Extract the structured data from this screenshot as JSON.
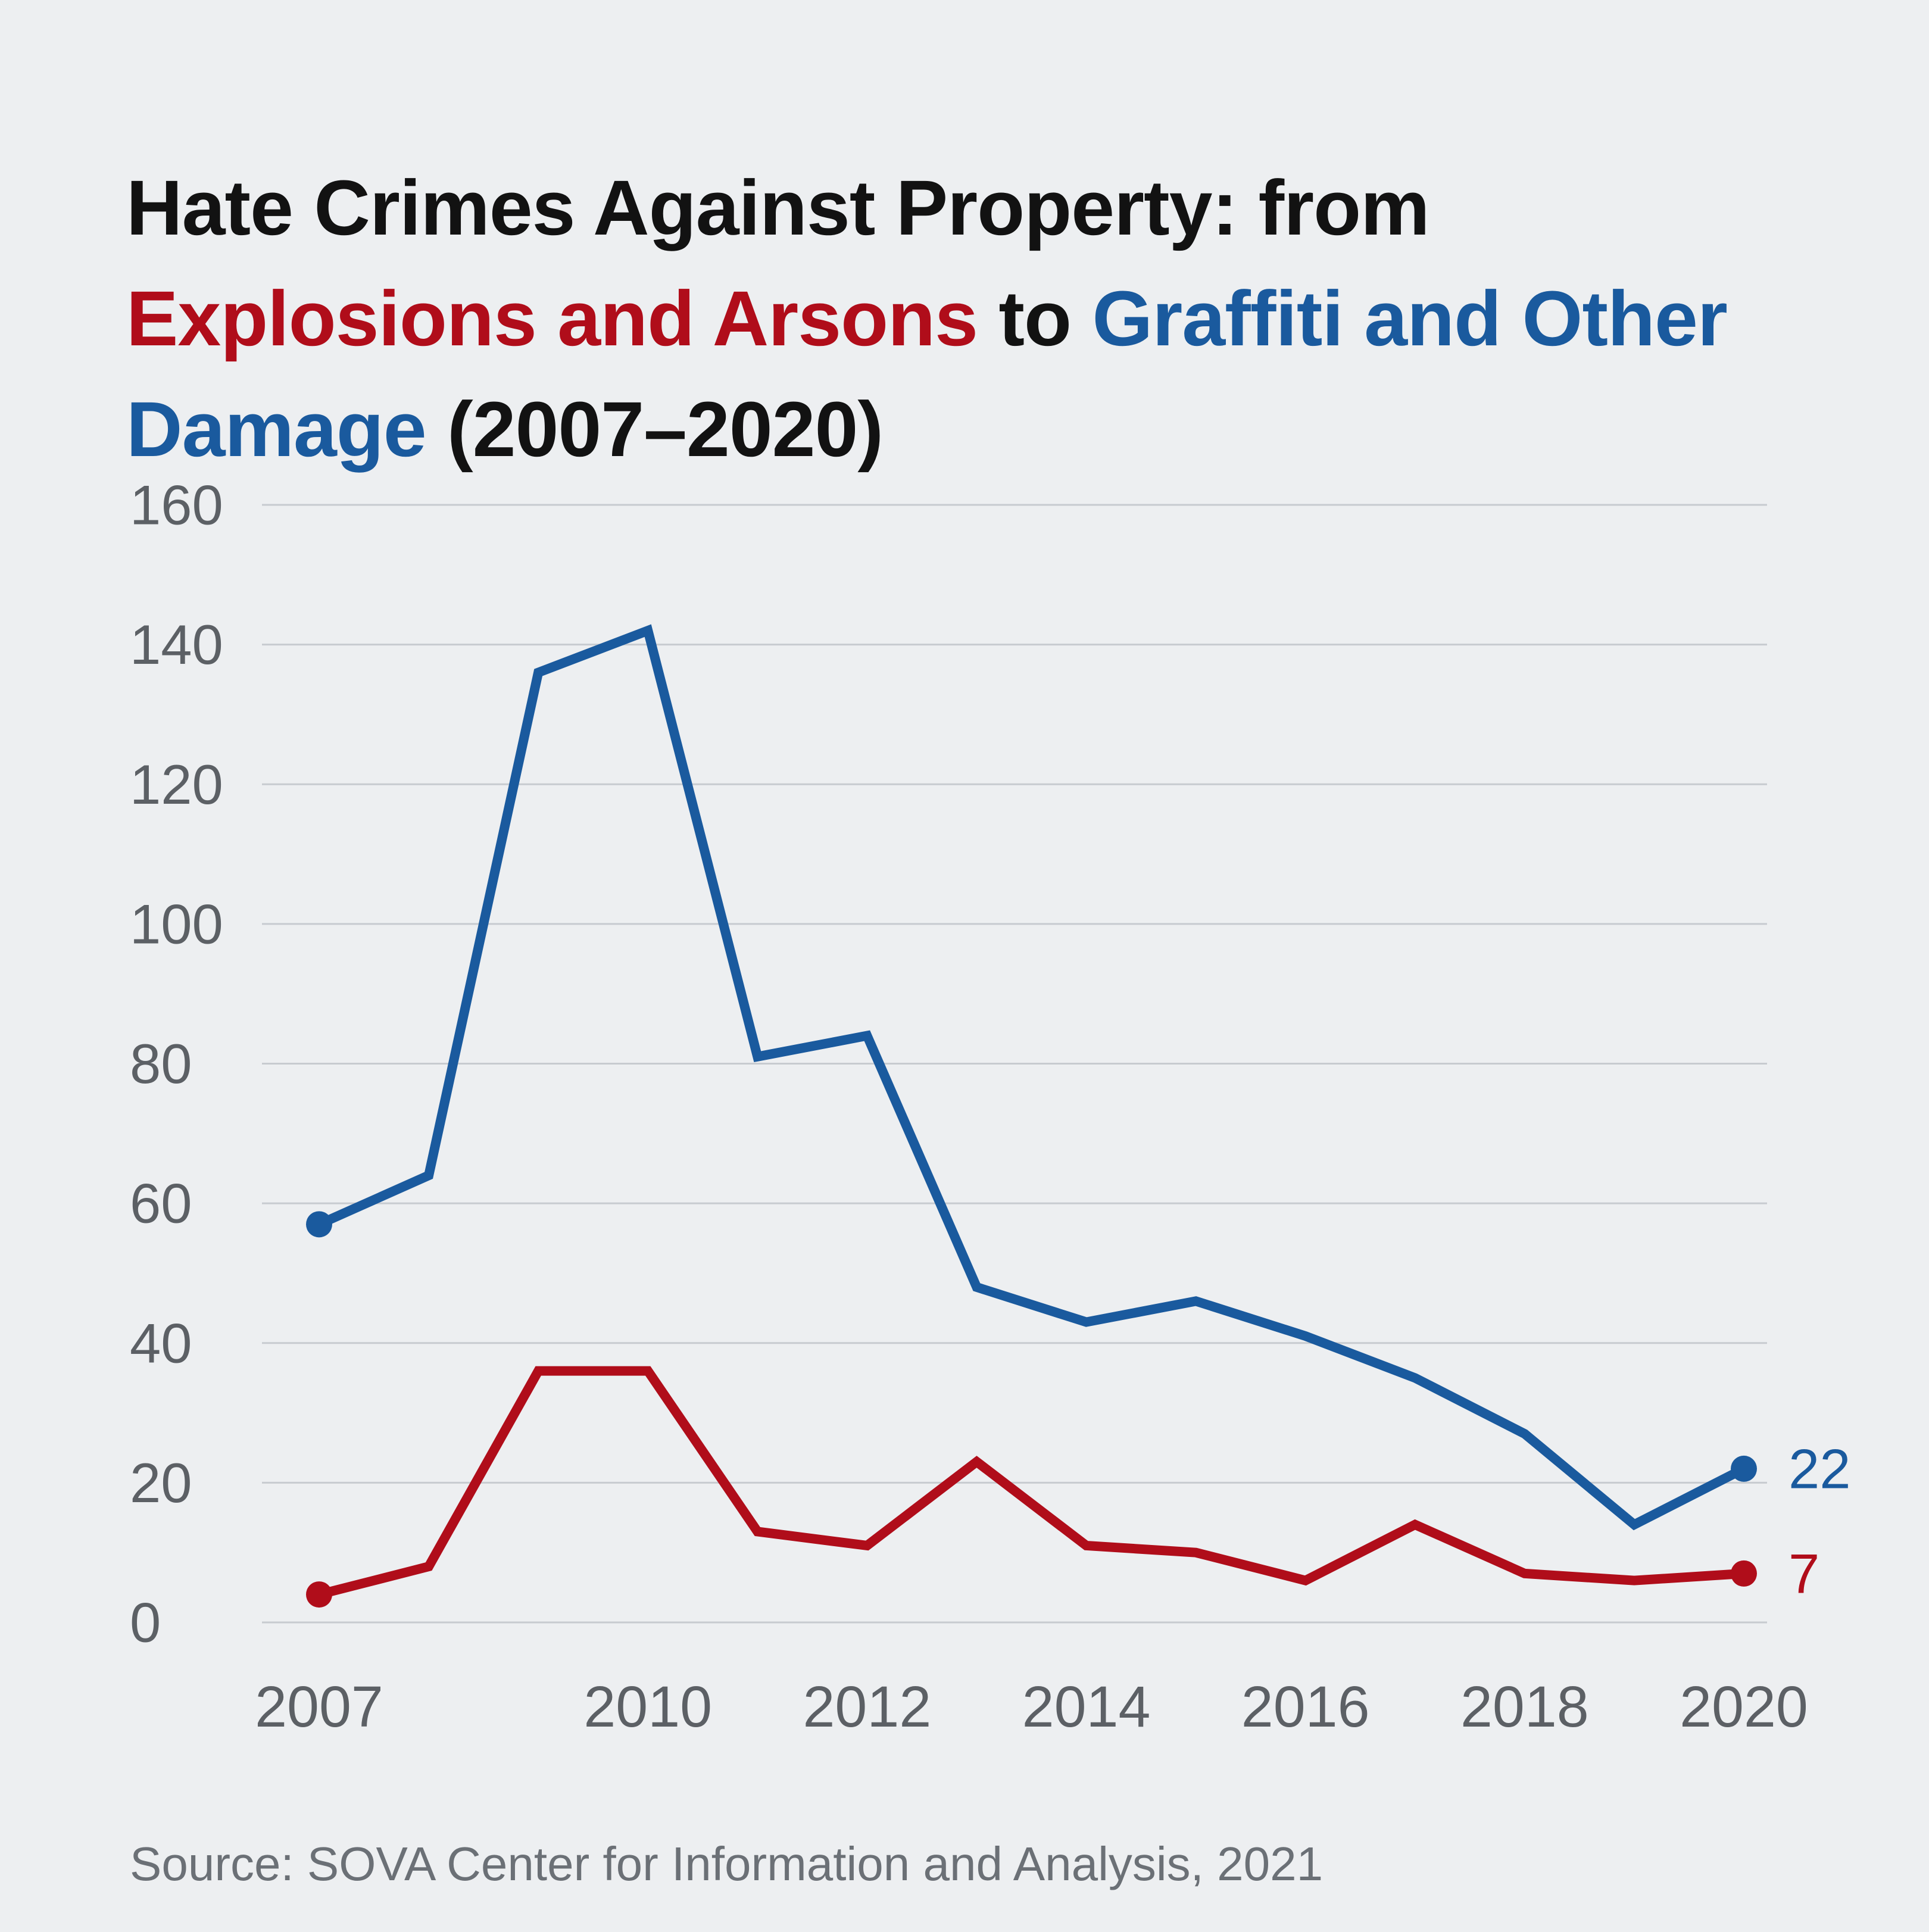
{
  "title": {
    "part1": "Hate Crimes Against Property: from ",
    "part2": "Explosions and Arsons",
    "part3": " to ",
    "part4": "Graffiti and Other Damage",
    "part5": " (2007–2020)"
  },
  "source": "Source: SOVA Center for Information and Analysis, 2021",
  "colors": {
    "red": "#b00d1a",
    "blue": "#1a5a9e",
    "grid": "#c7cbd0",
    "axis_text": "#5c6065",
    "background": "#edeff1"
  },
  "chart_data": {
    "type": "line",
    "x": [
      2007,
      2008,
      2009,
      2010,
      2011,
      2012,
      2013,
      2014,
      2015,
      2016,
      2017,
      2018,
      2019,
      2020
    ],
    "x_ticks": [
      2007,
      2010,
      2012,
      2014,
      2016,
      2018,
      2020
    ],
    "x_tick_labels": [
      "2007",
      "2010",
      "2012",
      "2014",
      "2016",
      "2018",
      "2020"
    ],
    "y_ticks": [
      0,
      20,
      40,
      60,
      80,
      100,
      120,
      140,
      160
    ],
    "ylim": [
      0,
      160
    ],
    "grid": true,
    "legend_position": "none",
    "series": [
      {
        "name": "Graffiti and Other Damage",
        "color_key": "blue",
        "values": [
          57,
          64,
          136,
          142,
          81,
          84,
          48,
          43,
          46,
          41,
          35,
          27,
          14,
          22
        ],
        "end_label": "22"
      },
      {
        "name": "Explosions and Arsons",
        "color_key": "red",
        "values": [
          4,
          8,
          36,
          36,
          13,
          11,
          23,
          11,
          10,
          6,
          14,
          7,
          6,
          7
        ],
        "end_label": "7"
      }
    ]
  }
}
